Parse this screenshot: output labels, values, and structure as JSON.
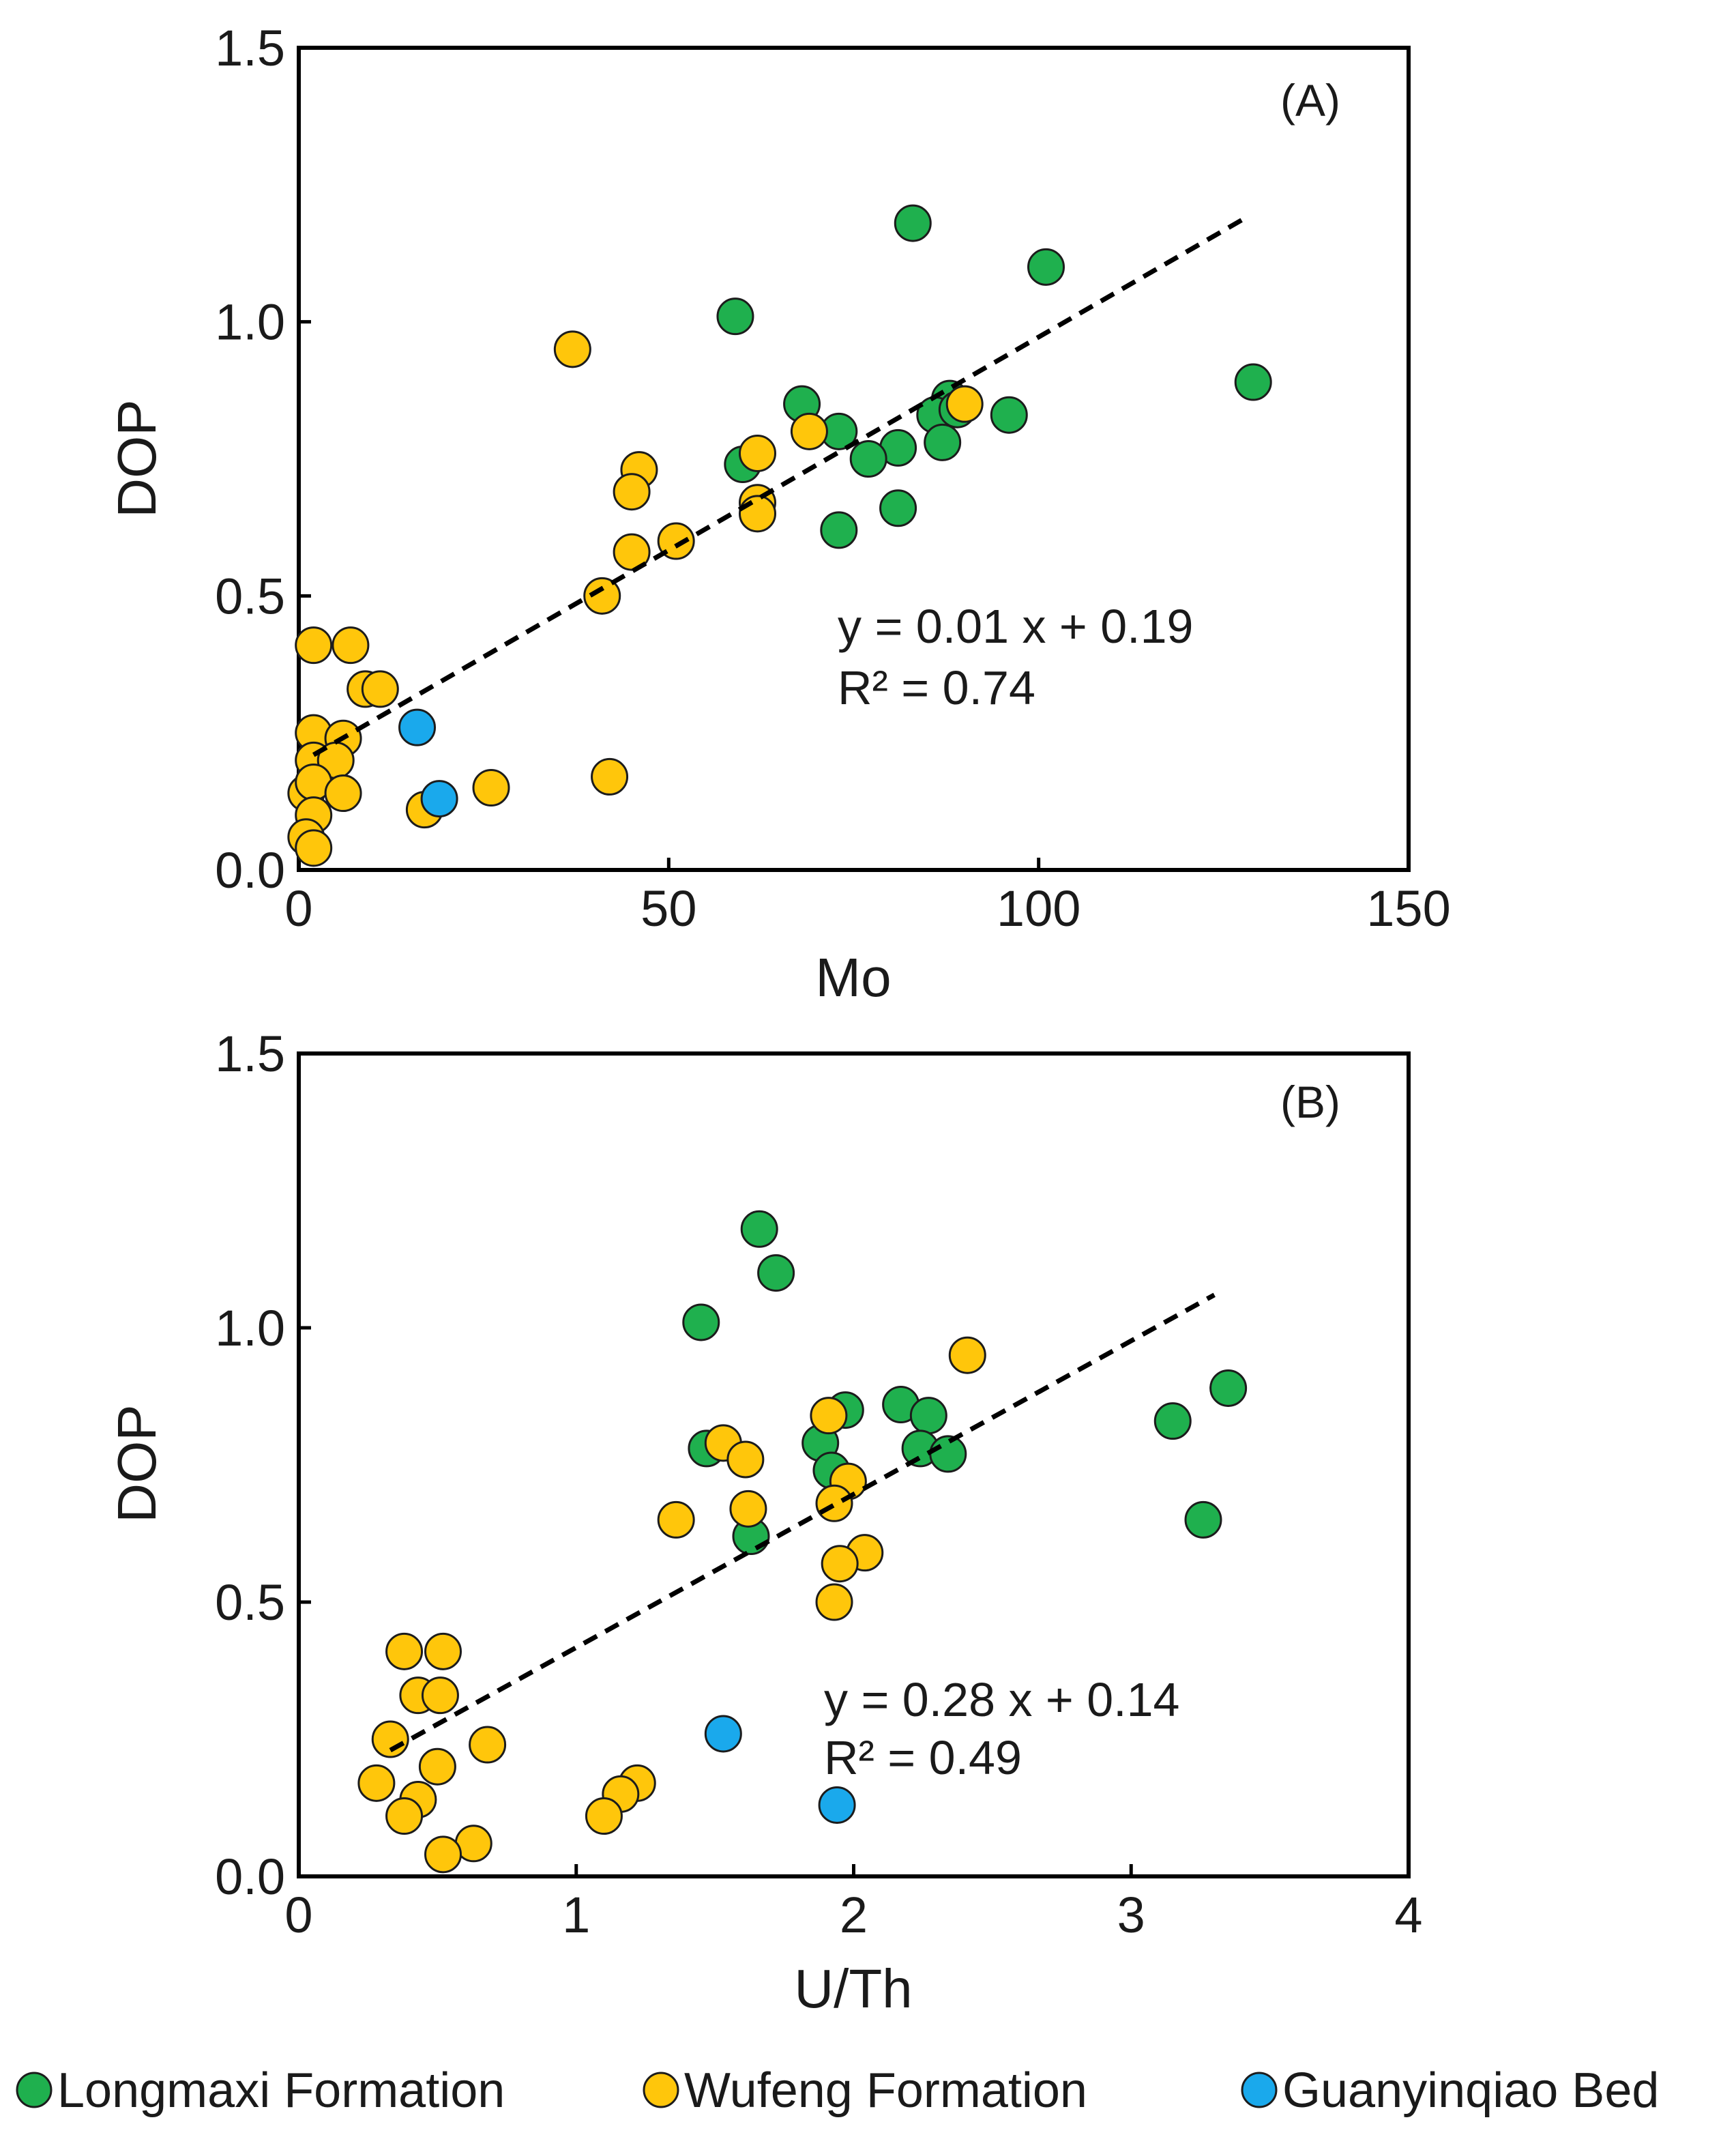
{
  "colors": {
    "Longmaxi Formation": "#1fb04e",
    "Wufeng Formation": "#ffc60b",
    "Guanyinqiao Bed": "#1aa9ec"
  },
  "legend": [
    {
      "name": "Longmaxi Formation",
      "label": "Longmaxi Formation"
    },
    {
      "name": "Wufeng Formation",
      "label": "Wufeng Formation"
    },
    {
      "name": "Guanyinqiao Bed",
      "label": "Guanyinqiao Bed"
    }
  ],
  "chart_data": [
    {
      "type": "scatter",
      "panel_label": "(A)",
      "xlabel": "Mo",
      "ylabel": "DOP",
      "xlim": [
        0,
        150
      ],
      "ylim": [
        0,
        1.5
      ],
      "xticks": [
        0,
        50,
        100,
        150
      ],
      "xtick_labels": [
        "0",
        "50",
        "100",
        "150"
      ],
      "yticks": [
        0,
        0.5,
        1.0,
        1.5
      ],
      "ytick_labels": [
        "0.0",
        "0.5",
        "1.0",
        "1.5"
      ],
      "equation": "y = 0.01 x + 0.19",
      "r2": "R² = 0.74",
      "trendline": {
        "x": [
          2,
          128
        ],
        "y": [
          0.21,
          1.19
        ]
      },
      "series": [
        {
          "name": "Longmaxi Formation",
          "points": [
            [
              83,
              1.18
            ],
            [
              101,
              1.1
            ],
            [
              59,
              1.01
            ],
            [
              129,
              0.89
            ],
            [
              68,
              0.85
            ],
            [
              88,
              0.86
            ],
            [
              86,
              0.83
            ],
            [
              96,
              0.83
            ],
            [
              89,
              0.84
            ],
            [
              73,
              0.8
            ],
            [
              81,
              0.77
            ],
            [
              60,
              0.74
            ],
            [
              77,
              0.75
            ],
            [
              87,
              0.78
            ],
            [
              81,
              0.66
            ],
            [
              73,
              0.62
            ]
          ]
        },
        {
          "name": "Wufeng Formation",
          "points": [
            [
              37,
              0.95
            ],
            [
              90,
              0.85
            ],
            [
              69,
              0.8
            ],
            [
              62,
              0.76
            ],
            [
              46,
              0.73
            ],
            [
              45,
              0.69
            ],
            [
              62,
              0.67
            ],
            [
              62,
              0.65
            ],
            [
              51,
              0.6
            ],
            [
              45,
              0.58
            ],
            [
              41,
              0.5
            ],
            [
              2,
              0.41
            ],
            [
              7,
              0.41
            ],
            [
              9,
              0.33
            ],
            [
              11,
              0.33
            ],
            [
              2,
              0.25
            ],
            [
              6,
              0.24
            ],
            [
              2,
              0.2
            ],
            [
              5,
              0.2
            ],
            [
              1,
              0.14
            ],
            [
              2,
              0.16
            ],
            [
              6,
              0.14
            ],
            [
              26,
              0.15
            ],
            [
              42,
              0.17
            ],
            [
              17,
              0.11
            ],
            [
              2,
              0.1
            ],
            [
              1,
              0.06
            ],
            [
              2,
              0.04
            ]
          ]
        },
        {
          "name": "Guanyinqiao Bed",
          "points": [
            [
              16,
              0.26
            ],
            [
              19,
              0.13
            ]
          ]
        }
      ]
    },
    {
      "type": "scatter",
      "panel_label": "(B)",
      "xlabel": "U/Th",
      "ylabel": "DOP",
      "xlim": [
        0,
        4
      ],
      "ylim": [
        0,
        1.5
      ],
      "xticks": [
        0,
        1,
        2,
        3,
        4
      ],
      "xtick_labels": [
        "0",
        "1",
        "2",
        "3",
        "4"
      ],
      "yticks": [
        0,
        0.5,
        1.0,
        1.5
      ],
      "ytick_labels": [
        "0.0",
        "0.5",
        "1.0",
        "1.5"
      ],
      "equation": "y = 0.28 x + 0.14",
      "r2": "R² = 0.49",
      "trendline": {
        "x": [
          0.33,
          3.3
        ],
        "y": [
          0.23,
          1.06
        ]
      },
      "series": [
        {
          "name": "Longmaxi Formation",
          "points": [
            [
              1.66,
              1.18
            ],
            [
              1.72,
              1.1
            ],
            [
              1.45,
              1.01
            ],
            [
              3.35,
              0.89
            ],
            [
              3.15,
              0.83
            ],
            [
              3.26,
              0.65
            ],
            [
              1.97,
              0.85
            ],
            [
              2.17,
              0.86
            ],
            [
              2.27,
              0.84
            ],
            [
              2.24,
              0.78
            ],
            [
              2.34,
              0.77
            ],
            [
              1.47,
              0.78
            ],
            [
              1.88,
              0.79
            ],
            [
              1.92,
              0.74
            ],
            [
              1.63,
              0.62
            ]
          ]
        },
        {
          "name": "Wufeng Formation",
          "points": [
            [
              2.41,
              0.95
            ],
            [
              1.91,
              0.84
            ],
            [
              1.53,
              0.79
            ],
            [
              1.61,
              0.76
            ],
            [
              1.98,
              0.72
            ],
            [
              1.93,
              0.68
            ],
            [
              1.36,
              0.65
            ],
            [
              1.62,
              0.67
            ],
            [
              2.04,
              0.59
            ],
            [
              1.95,
              0.57
            ],
            [
              1.93,
              0.5
            ],
            [
              0.38,
              0.41
            ],
            [
              0.52,
              0.41
            ],
            [
              0.43,
              0.33
            ],
            [
              0.51,
              0.33
            ],
            [
              0.33,
              0.25
            ],
            [
              0.68,
              0.24
            ],
            [
              0.5,
              0.2
            ],
            [
              0.28,
              0.17
            ],
            [
              0.43,
              0.14
            ],
            [
              0.38,
              0.11
            ],
            [
              1.22,
              0.17
            ],
            [
              1.16,
              0.15
            ],
            [
              1.1,
              0.11
            ],
            [
              0.63,
              0.06
            ],
            [
              0.52,
              0.04
            ]
          ]
        },
        {
          "name": "Guanyinqiao Bed",
          "points": [
            [
              1.53,
              0.26
            ],
            [
              1.94,
              0.13
            ]
          ]
        }
      ]
    }
  ]
}
